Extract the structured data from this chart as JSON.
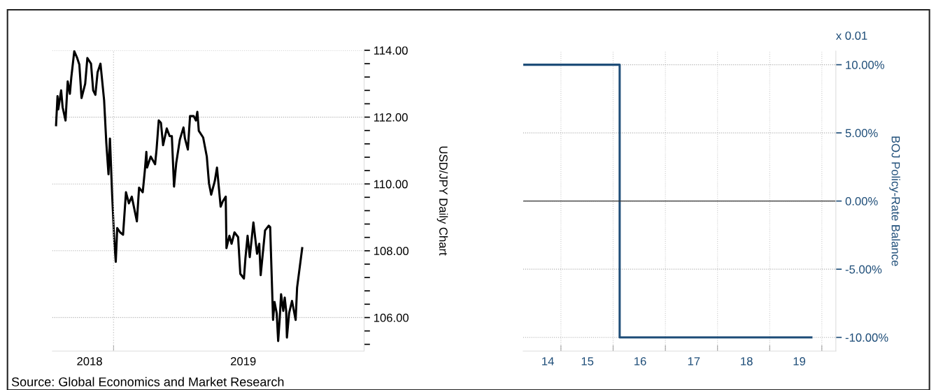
{
  "chart_data": [
    {
      "type": "line",
      "ylabel": "USD/JPY Daily Chart",
      "grid": "y",
      "legend": false,
      "ref_lines": [
        {
          "axis": "x",
          "value": "2019-01-01",
          "color": "#cccccc",
          "line_style": "dotted"
        }
      ],
      "x": [
        "2018-10-14",
        "2018-10-16",
        "2018-10-17",
        "2018-10-21",
        "2018-10-23",
        "2018-10-27",
        "2018-10-30",
        "2018-11-02",
        "2018-11-04",
        "2018-11-08",
        "2018-11-12",
        "2018-11-15",
        "2018-11-18",
        "2018-11-23",
        "2018-11-26",
        "2018-12-01",
        "2018-12-04",
        "2018-12-07",
        "2018-12-10",
        "2018-12-14",
        "2018-12-19",
        "2018-12-22",
        "2018-12-25",
        "2018-12-27",
        "2018-12-30",
        "2019-01-02",
        "2019-01-04",
        "2019-01-06",
        "2019-01-10",
        "2019-01-14",
        "2019-01-18",
        "2019-01-22",
        "2019-01-26",
        "2019-02-02",
        "2019-02-05",
        "2019-02-10",
        "2019-02-13",
        "2019-02-15",
        "2019-02-16",
        "2019-02-21",
        "2019-02-27",
        "2019-03-01",
        "2019-03-04",
        "2019-03-07",
        "2019-03-10",
        "2019-03-15",
        "2019-03-19",
        "2019-03-22",
        "2019-03-25",
        "2019-03-28",
        "2019-04-02",
        "2019-04-07",
        "2019-04-09",
        "2019-04-13",
        "2019-04-16",
        "2019-04-21",
        "2019-04-24",
        "2019-04-26",
        "2019-04-28",
        "2019-05-04",
        "2019-05-09",
        "2019-05-12",
        "2019-05-15",
        "2019-05-20",
        "2019-05-23",
        "2019-05-28",
        "2019-05-31",
        "2019-06-04",
        "2019-06-05",
        "2019-06-09",
        "2019-06-12",
        "2019-06-16",
        "2019-06-21",
        "2019-06-24",
        "2019-06-29",
        "2019-07-01",
        "2019-07-04",
        "2019-07-07",
        "2019-07-12",
        "2019-07-17",
        "2019-07-20",
        "2019-07-22",
        "2019-07-28",
        "2019-08-02",
        "2019-08-04",
        "2019-08-08",
        "2019-08-10",
        "2019-08-13",
        "2019-08-15",
        "2019-08-17",
        "2019-08-19",
        "2019-08-22",
        "2019-08-24",
        "2019-08-26",
        "2019-08-27",
        "2019-08-30",
        "2019-09-03",
        "2019-09-08",
        "2019-09-10",
        "2019-09-17"
      ],
      "series": [
        {
          "color": "#000000",
          "values": [
            111.76,
            112.63,
            112.23,
            112.8,
            112.3,
            111.9,
            113.07,
            112.7,
            113.2,
            113.97,
            113.77,
            113.57,
            112.57,
            113.0,
            113.77,
            113.6,
            112.8,
            112.67,
            113.34,
            113.6,
            112.5,
            111.23,
            110.29,
            111.36,
            109.68,
            108.28,
            107.67,
            108.68,
            108.55,
            108.48,
            109.75,
            109.42,
            109.62,
            108.88,
            109.89,
            109.75,
            110.42,
            110.96,
            110.49,
            110.82,
            110.59,
            111.03,
            111.9,
            111.83,
            111.16,
            111.66,
            111.43,
            111.43,
            109.92,
            110.62,
            111.33,
            111.69,
            111.36,
            111.03,
            112.03,
            112.03,
            111.9,
            112.16,
            111.59,
            111.39,
            110.82,
            110.02,
            109.68,
            110.09,
            110.49,
            109.32,
            109.48,
            109.62,
            108.08,
            108.45,
            108.21,
            108.55,
            108.41,
            107.31,
            107.17,
            107.77,
            108.45,
            107.81,
            108.85,
            107.91,
            108.21,
            107.27,
            108.61,
            108.75,
            108.71,
            105.93,
            106.47,
            106.13,
            105.3,
            105.93,
            106.7,
            106.2,
            106.6,
            106.2,
            105.4,
            106.13,
            106.5,
            105.93,
            106.9,
            108.08
          ]
        }
      ],
      "xlim": [
        "2018-10-09",
        "2019-12-11"
      ],
      "xticks": [
        {
          "value": "2018-11-29",
          "label": "2018"
        },
        {
          "value": "2019-01-01",
          "label": null
        },
        {
          "value": "2019-06-28",
          "label": "2019"
        }
      ],
      "ylim": [
        105.0,
        114.0
      ],
      "yticks": [
        {
          "value": 105.2,
          "label": null
        },
        {
          "value": 105.6,
          "label": null
        },
        {
          "value": 106,
          "label": "106.00"
        },
        {
          "value": 106.4,
          "label": null
        },
        {
          "value": 106.8,
          "label": null
        },
        {
          "value": 107.2,
          "label": null
        },
        {
          "value": 107.6,
          "label": null
        },
        {
          "value": 108,
          "label": "108.00"
        },
        {
          "value": 108.4,
          "label": null
        },
        {
          "value": 108.8,
          "label": null
        },
        {
          "value": 109.2,
          "label": null
        },
        {
          "value": 109.6,
          "label": null
        },
        {
          "value": 110,
          "label": "110.00"
        },
        {
          "value": 110.4,
          "label": null
        },
        {
          "value": 110.8,
          "label": null
        },
        {
          "value": 111.2,
          "label": null
        },
        {
          "value": 111.6,
          "label": null
        },
        {
          "value": 112,
          "label": "112.00"
        },
        {
          "value": 112.4,
          "label": null
        },
        {
          "value": 112.8,
          "label": null
        },
        {
          "value": 113.2,
          "label": null
        },
        {
          "value": 113.6,
          "label": null
        },
        {
          "value": 114,
          "label": "114.00"
        }
      ],
      "annotations": [
        "Source: Global Economics and Market Research"
      ]
    },
    {
      "type": "step",
      "ylabel": "BOJ Policy-Rate Balance",
      "grid": true,
      "legend": false,
      "x": [
        "2014-04-12",
        "2016-02-16",
        "2019-10-20"
      ],
      "series": [
        {
          "color": "#1f4e79",
          "values": [
            10,
            -10,
            -10
          ]
        }
      ],
      "xlim": [
        "2014-04-12",
        "2020-04-08"
      ],
      "xticks": [
        {
          "value": "2014-10-01",
          "label": "14"
        },
        {
          "value": "2015-01-01",
          "label": null
        },
        {
          "value": "2015-07-05",
          "label": "15"
        },
        {
          "value": "2016-01-01",
          "label": null
        },
        {
          "value": "2016-07-08",
          "label": "16"
        },
        {
          "value": "2017-01-01",
          "label": null
        },
        {
          "value": "2017-07-19",
          "label": "17"
        },
        {
          "value": "2018-01-01",
          "label": null
        },
        {
          "value": "2018-07-23",
          "label": "18"
        },
        {
          "value": "2019-01-01",
          "label": null
        },
        {
          "value": "2019-07-27",
          "label": "19"
        },
        {
          "value": "2020-01-01",
          "label": null
        }
      ],
      "ylim": [
        -11,
        11
      ],
      "yticks": [
        {
          "value": -10,
          "label": "-10.00%"
        },
        {
          "value": -5,
          "label": "-5.00%"
        },
        {
          "value": 0,
          "label": "0.00%"
        },
        {
          "value": 5,
          "label": "5.00%"
        },
        {
          "value": 10,
          "label": "10.00%"
        }
      ],
      "ref_lines": [
        {
          "axis": "y",
          "value": 0,
          "color": "#333333"
        }
      ],
      "annotations": [
        "x 0.01"
      ]
    }
  ]
}
